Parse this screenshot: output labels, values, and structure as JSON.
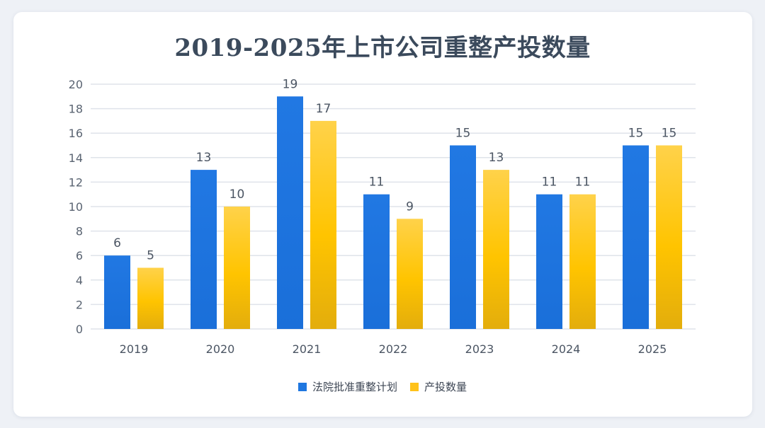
{
  "chart_data": {
    "type": "bar",
    "title": "2019-2025年上市公司重整产投数量",
    "categories": [
      "2019",
      "2020",
      "2021",
      "2022",
      "2023",
      "2024",
      "2025"
    ],
    "series": [
      {
        "name": "法院批准重整计划",
        "values": [
          6,
          13,
          19,
          11,
          15,
          11,
          15
        ],
        "color": "#1f77e0"
      },
      {
        "name": "产投数量",
        "values": [
          5,
          10,
          17,
          9,
          13,
          11,
          15
        ],
        "color": "#ffc21a"
      }
    ],
    "ylim": [
      0,
      20
    ],
    "yticks": [
      0,
      2,
      4,
      6,
      8,
      10,
      12,
      14,
      16,
      18,
      20
    ],
    "xlabel": "",
    "ylabel": "",
    "grid": true,
    "legend": "bottom-center"
  }
}
